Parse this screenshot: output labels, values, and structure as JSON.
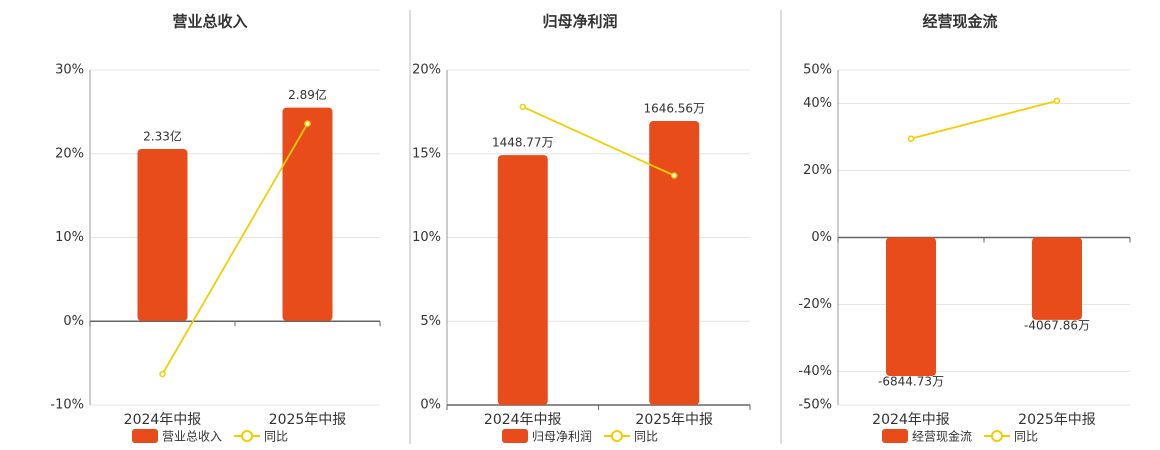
{
  "chart_data": [
    {
      "type": "bar",
      "title": "营业总收入",
      "categories": [
        "2024年中报",
        "2025年中报"
      ],
      "series": [
        {
          "name": "营业总收入",
          "color": "#e84c1a",
          "axis": "y2",
          "values": [
            2.33,
            2.89
          ],
          "value_labels": [
            "2.33亿",
            "2.89亿"
          ]
        },
        {
          "name": "同比",
          "color": "#f0d000",
          "type": "line",
          "values": [
            -6.3,
            23.6
          ]
        }
      ],
      "ylim": [
        -10,
        30
      ],
      "yticks": [
        {
          "value": -10,
          "label": "-10%"
        },
        {
          "value": 0,
          "label": "0%"
        },
        {
          "value": 10,
          "label": "10%"
        },
        {
          "value": 20,
          "label": "20%"
        },
        {
          "value": 30,
          "label": "30%"
        }
      ],
      "y2lim": [
        -1.14,
        3.4
      ],
      "grid": true
    },
    {
      "type": "bar",
      "title": "归母净利润",
      "categories": [
        "2024年中报",
        "2025年中报"
      ],
      "series": [
        {
          "name": "归母净利润",
          "color": "#e84c1a",
          "axis": "y2",
          "values": [
            1448.77,
            1646.56
          ],
          "value_labels": [
            "1448.77万",
            "1646.56万"
          ]
        },
        {
          "name": "同比",
          "color": "#f0d000",
          "type": "line",
          "values": [
            17.8,
            13.7
          ]
        }
      ],
      "ylim": [
        0,
        20
      ],
      "yticks": [
        {
          "value": 0,
          "label": "0%"
        },
        {
          "value": 5,
          "label": "5%"
        },
        {
          "value": 10,
          "label": "10%"
        },
        {
          "value": 15,
          "label": "15%"
        },
        {
          "value": 20,
          "label": "20%"
        }
      ],
      "y2lim": [
        0,
        1942
      ],
      "grid": true
    },
    {
      "type": "bar",
      "title": "经营现金流",
      "categories": [
        "2024年中报",
        "2025年中报"
      ],
      "series": [
        {
          "name": "经营现金流",
          "color": "#e84c1a",
          "axis": "y2",
          "values": [
            -6844.73,
            -4067.86
          ],
          "value_labels": [
            "-6844.73万",
            "-4067.86万"
          ]
        },
        {
          "name": "同比",
          "color": "#f0d000",
          "type": "line",
          "values": [
            29.5,
            40.8
          ]
        }
      ],
      "ylim": [
        -50,
        50
      ],
      "yticks": [
        {
          "value": -50,
          "label": "-50%"
        },
        {
          "value": -40,
          "label": "-40%"
        },
        {
          "value": -20,
          "label": "-20%"
        },
        {
          "value": 0,
          "label": "0%"
        },
        {
          "value": 20,
          "label": "20%"
        },
        {
          "value": 40,
          "label": "40%"
        },
        {
          "value": 50,
          "label": "50%"
        }
      ],
      "y2lim": [
        -8276,
        8276
      ],
      "grid": true
    }
  ]
}
